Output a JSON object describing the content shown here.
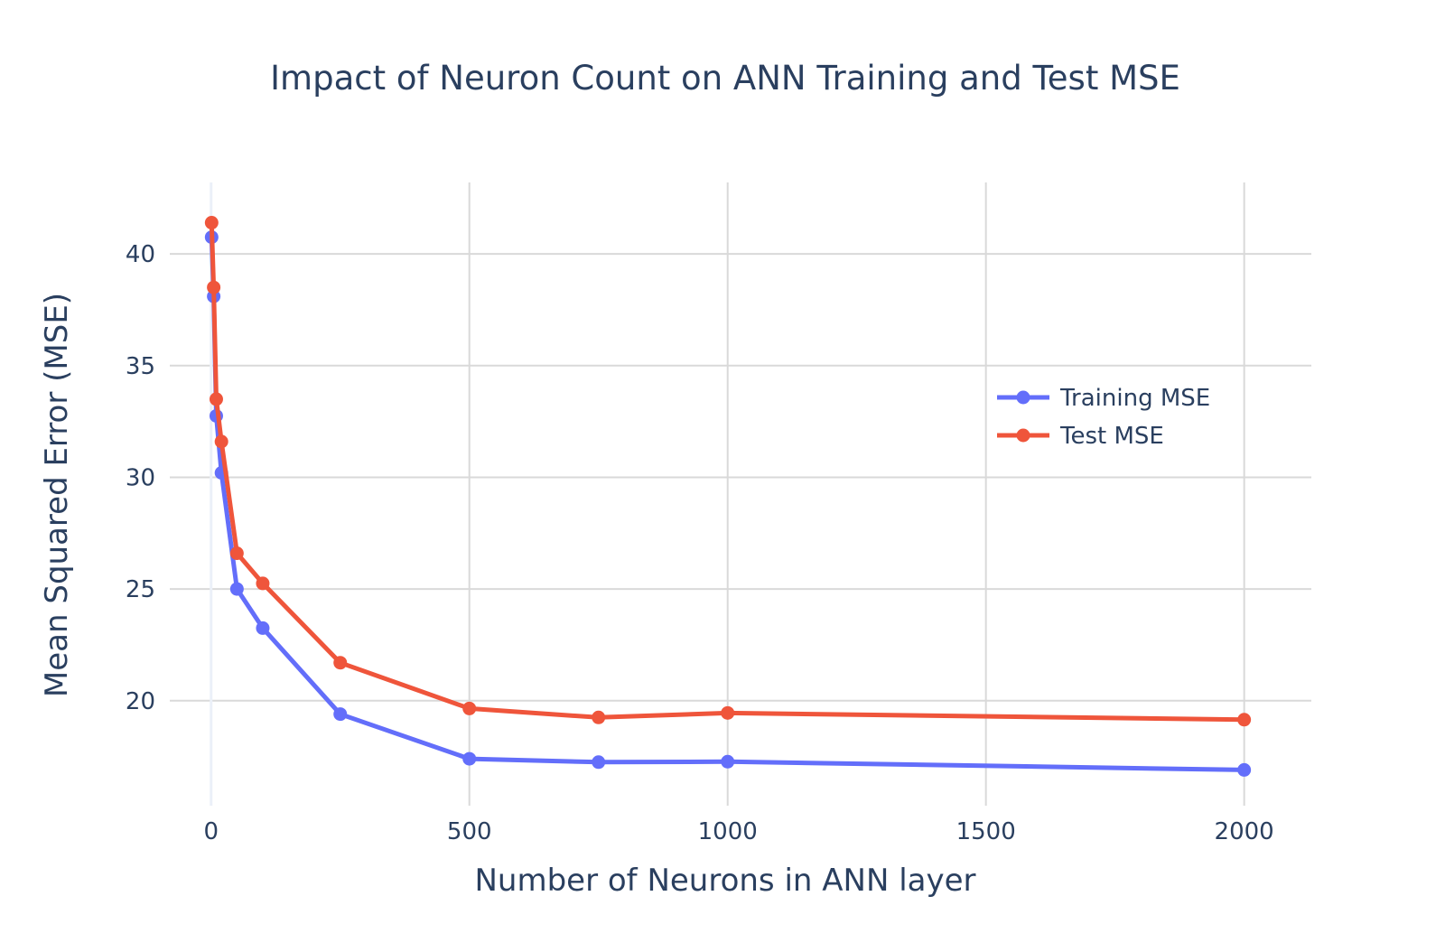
{
  "chart_data": {
    "type": "line",
    "title": "Impact of Neuron Count on ANN Training and Test MSE",
    "xlabel": "Number of Neurons in ANN layer",
    "ylabel": "Mean Squared Error (MSE)",
    "xlim": [
      -80,
      2130
    ],
    "ylim": [
      15.3,
      43.2
    ],
    "x_ticks": [
      0,
      500,
      1000,
      1500,
      2000
    ],
    "y_ticks": [
      20,
      25,
      30,
      35,
      40
    ],
    "grid": true,
    "legend_position": "right",
    "x": [
      1,
      5,
      10,
      20,
      50,
      100,
      250,
      500,
      750,
      1000,
      2000
    ],
    "series": [
      {
        "name": "Training MSE",
        "color": "#636efa",
        "values": [
          40.75,
          38.1,
          32.75,
          30.2,
          25.0,
          23.25,
          19.4,
          17.4,
          17.25,
          17.27,
          16.9
        ]
      },
      {
        "name": "Test MSE",
        "color": "#ef553b",
        "values": [
          41.4,
          38.5,
          33.5,
          31.6,
          26.6,
          25.25,
          21.7,
          19.65,
          19.25,
          19.45,
          19.15
        ]
      }
    ]
  }
}
